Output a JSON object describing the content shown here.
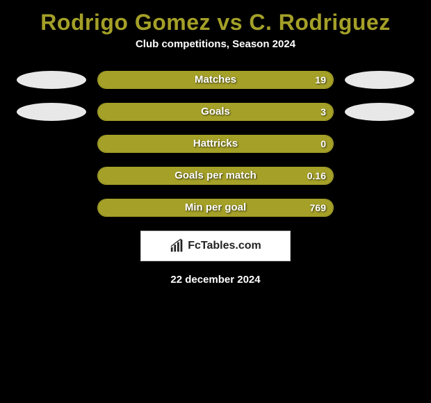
{
  "header": {
    "title": "Rodrigo Gomez vs C. Rodriguez",
    "subtitle": "Club competitions, Season 2024",
    "title_color": "#a4a028",
    "subtitle_color": "#ffffff"
  },
  "stats": [
    {
      "label": "Matches",
      "value": "19",
      "fill_percent": 100,
      "show_left_ellipse": true,
      "show_right_ellipse": true
    },
    {
      "label": "Goals",
      "value": "3",
      "fill_percent": 100,
      "show_left_ellipse": true,
      "show_right_ellipse": true
    },
    {
      "label": "Hattricks",
      "value": "0",
      "fill_percent": 100,
      "show_left_ellipse": false,
      "show_right_ellipse": false
    },
    {
      "label": "Goals per match",
      "value": "0.16",
      "fill_percent": 100,
      "show_left_ellipse": false,
      "show_right_ellipse": false
    },
    {
      "label": "Min per goal",
      "value": "769",
      "fill_percent": 100,
      "show_left_ellipse": false,
      "show_right_ellipse": false
    }
  ],
  "badge": {
    "text": "FcTables.com",
    "icon": "chart-bars-icon"
  },
  "footer": {
    "date": "22 december 2024"
  },
  "colors": {
    "background": "#000000",
    "accent": "#a4a028",
    "ellipse": "#e8e8e8",
    "text": "#ffffff"
  }
}
